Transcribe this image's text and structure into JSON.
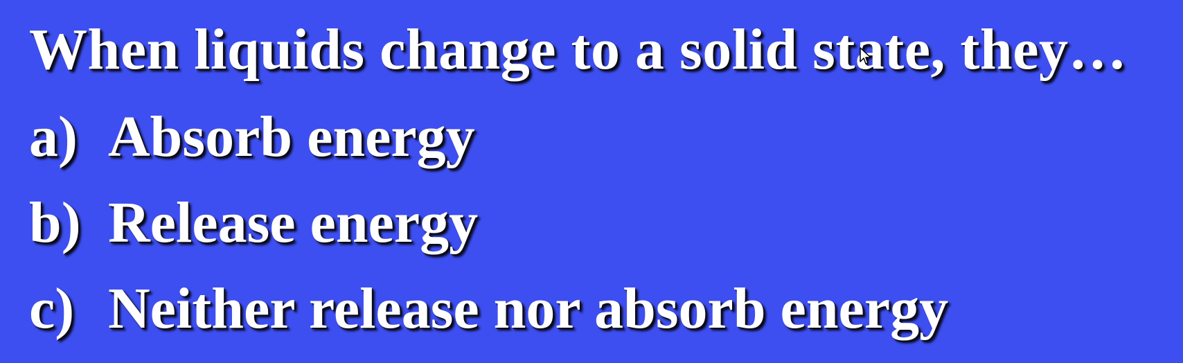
{
  "slide": {
    "question": "When liquids change to a solid state, they…",
    "options": [
      {
        "letter": "a)",
        "text": "Absorb energy"
      },
      {
        "letter": "b)",
        "text": "Release energy"
      },
      {
        "letter": "c)",
        "text": "Neither release nor absorb energy"
      }
    ]
  },
  "colors": {
    "background": "#3d4ff0",
    "text": "#ffffff",
    "shadow": "#0a0a1a"
  },
  "icons": {
    "cursor": "mouse-pointer-icon"
  }
}
